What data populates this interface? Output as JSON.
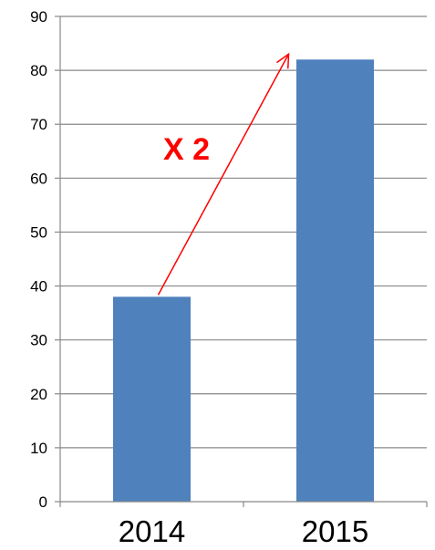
{
  "chart_data": {
    "type": "bar",
    "categories": [
      "2014",
      "2015"
    ],
    "values": [
      38,
      82
    ],
    "ylim": [
      0,
      90
    ],
    "yticks": [
      0,
      10,
      20,
      30,
      40,
      50,
      60,
      70,
      80,
      90
    ],
    "grid": true,
    "legend": "none",
    "annotation": {
      "text": "X 2",
      "from": {
        "category": "2014",
        "value": 38
      },
      "to": {
        "category": "2015",
        "value": 82
      },
      "color": "#ff0000"
    }
  },
  "colors": {
    "bar": "#4f81bd",
    "grid": "#888888",
    "axis": "#888888",
    "annotation": "#ff0000"
  }
}
